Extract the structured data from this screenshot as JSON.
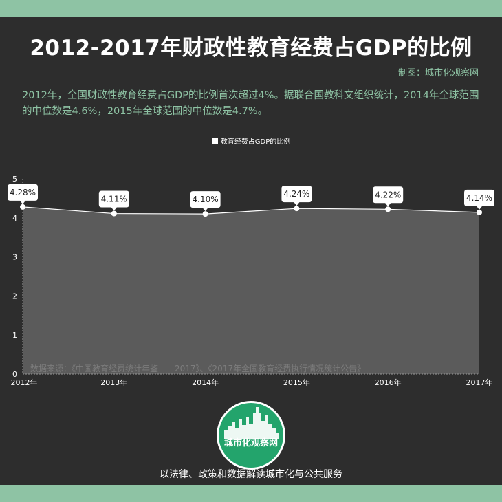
{
  "header": {
    "title": "2012-2017年财政性教育经费占GDP的比例",
    "credit": "制图：城市化观察网",
    "description": "2012年，全国财政性教育经费占GDP的比例首次超过4%。据联合国教科文组织统计，2014年全球范围的中位数是4.6%，2015年全球范围的中位数是4.7%。"
  },
  "chart_data": {
    "type": "area",
    "categories": [
      "2012年",
      "2013年",
      "2014年",
      "2015年",
      "2016年",
      "2017年"
    ],
    "series": [
      {
        "name": "教育经费占GDP的比例",
        "values": [
          4.28,
          4.11,
          4.1,
          4.24,
          4.22,
          4.14
        ],
        "value_labels": [
          "4.28%",
          "4.11%",
          "4.10%",
          "4.24%",
          "4.22%",
          "4.14%"
        ]
      }
    ],
    "y_ticks": [
      "0",
      "1",
      "2",
      "3",
      "4",
      "5"
    ],
    "ylim": [
      0,
      5
    ],
    "grid": false,
    "legend_position": "top-center",
    "colors": {
      "area_fill": "#5b5b5b",
      "line": "#ffffff",
      "label_bg": "#ffffff"
    }
  },
  "source_note": "数据来源：《中国教育经费统计年鉴——2017》、《2017年全国教育经费执行情况统计公告》",
  "footer": {
    "logo_text": "城市化观察网",
    "tagline": "以法律、政策和数据解读城市化与公共服务"
  },
  "colors": {
    "background": "#2d2d2d",
    "accent": "#8ec3a4",
    "logo_green": "#23a46c"
  }
}
